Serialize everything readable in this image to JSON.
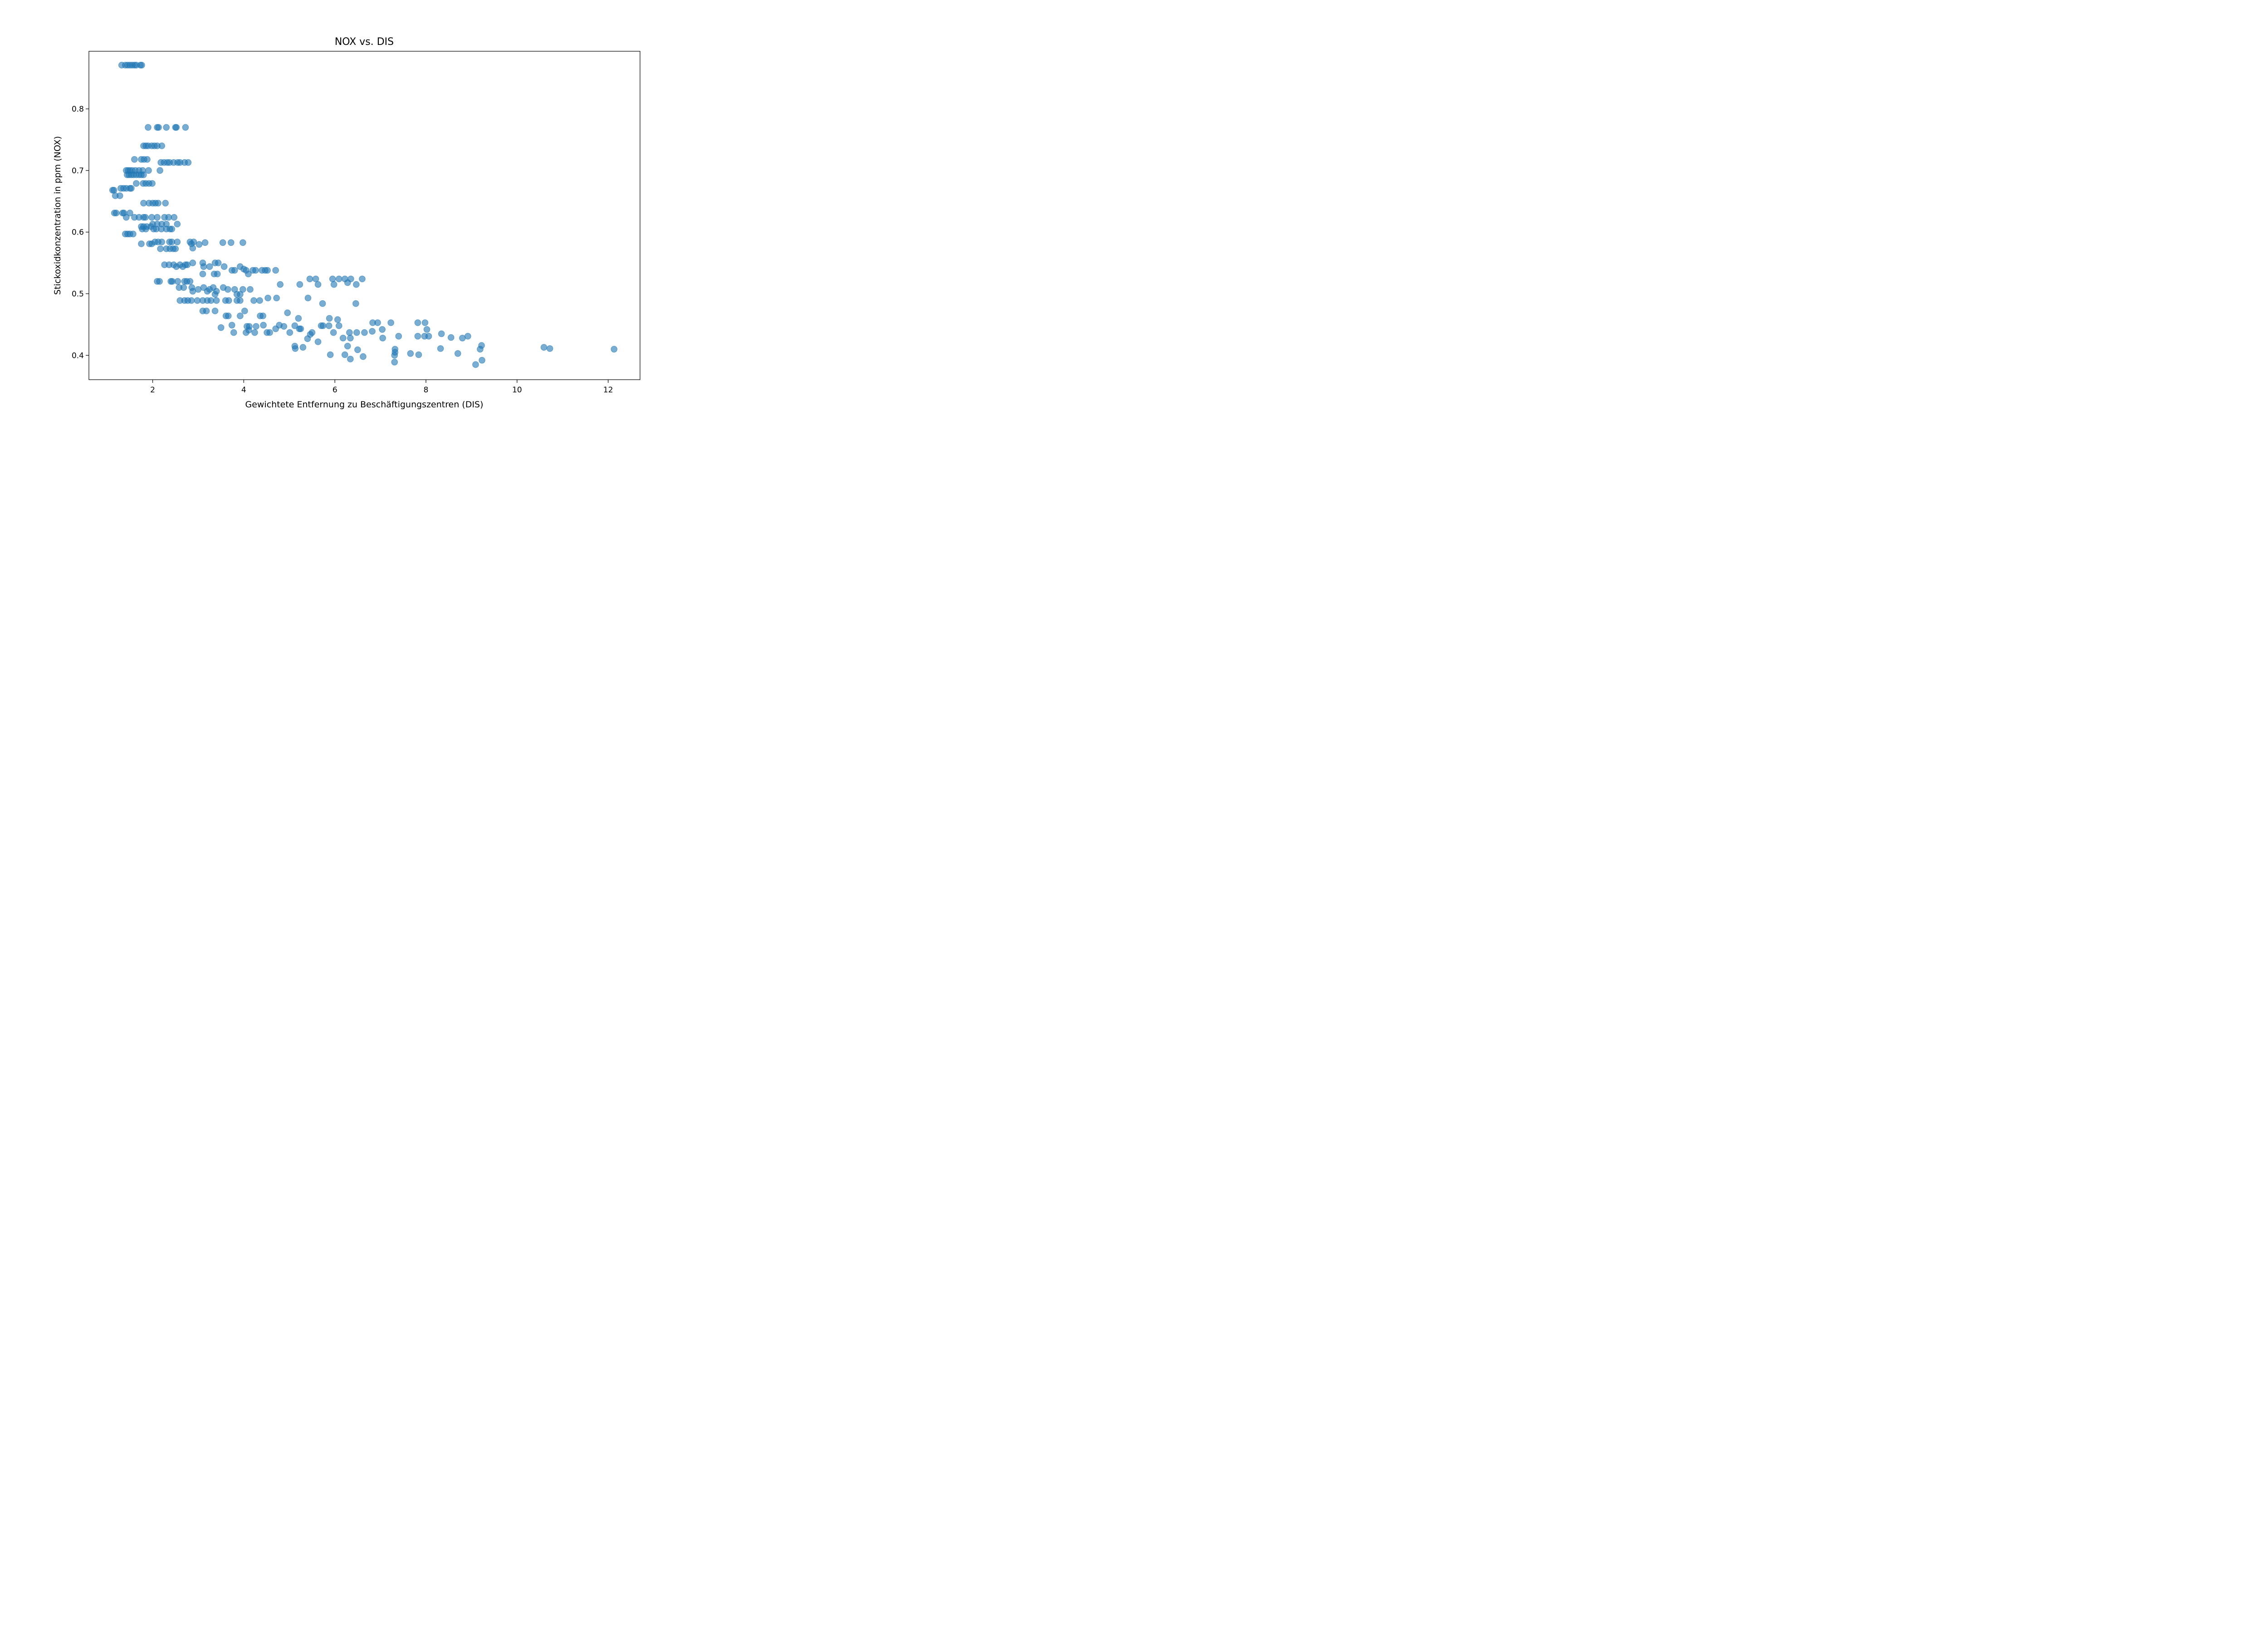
{
  "chart_data": {
    "type": "scatter",
    "title": "NOX vs. DIS",
    "xlabel": "Gewichtete Entfernung zu Beschäftigungszentren (DIS)",
    "ylabel": "Stickoxidkonzentration in ppm (NOX)",
    "xlim": [
      0.6,
      12.7
    ],
    "ylim": [
      0.3605,
      0.8935
    ],
    "xticks": [
      2,
      4,
      6,
      8,
      10,
      12
    ],
    "yticks": [
      0.4,
      0.5,
      0.6,
      0.7,
      0.8
    ],
    "grid": false,
    "marker_color": "#1f77b4",
    "marker_alpha": 0.6,
    "points": [
      [
        1.32,
        0.871
      ],
      [
        1.4,
        0.871
      ],
      [
        1.45,
        0.871
      ],
      [
        1.5,
        0.871
      ],
      [
        1.55,
        0.871
      ],
      [
        1.6,
        0.871
      ],
      [
        1.64,
        0.871
      ],
      [
        1.73,
        0.871
      ],
      [
        1.76,
        0.871
      ],
      [
        1.12,
        0.668
      ],
      [
        1.15,
        0.668
      ],
      [
        1.18,
        0.659
      ],
      [
        1.28,
        0.659
      ],
      [
        1.3,
        0.671
      ],
      [
        1.36,
        0.671
      ],
      [
        1.42,
        0.671
      ],
      [
        1.5,
        0.671
      ],
      [
        1.16,
        0.631
      ],
      [
        1.2,
        0.631
      ],
      [
        1.34,
        0.631
      ],
      [
        1.37,
        0.631
      ],
      [
        1.5,
        0.631
      ],
      [
        1.42,
        0.624
      ],
      [
        1.6,
        0.624
      ],
      [
        1.7,
        0.624
      ],
      [
        1.4,
        0.597
      ],
      [
        1.45,
        0.597
      ],
      [
        1.5,
        0.597
      ],
      [
        1.57,
        0.597
      ],
      [
        1.42,
        0.7
      ],
      [
        1.46,
        0.7
      ],
      [
        1.5,
        0.7
      ],
      [
        1.55,
        0.7
      ],
      [
        1.62,
        0.7
      ],
      [
        1.7,
        0.7
      ],
      [
        1.78,
        0.7
      ],
      [
        1.91,
        0.7
      ],
      [
        1.44,
        0.693
      ],
      [
        1.48,
        0.693
      ],
      [
        1.53,
        0.693
      ],
      [
        1.58,
        0.693
      ],
      [
        1.64,
        0.693
      ],
      [
        1.7,
        0.693
      ],
      [
        1.75,
        0.693
      ],
      [
        1.8,
        0.693
      ],
      [
        1.6,
        0.718
      ],
      [
        1.75,
        0.718
      ],
      [
        1.81,
        0.718
      ],
      [
        1.88,
        0.718
      ],
      [
        1.53,
        0.671
      ],
      [
        1.64,
        0.679
      ],
      [
        1.79,
        0.679
      ],
      [
        1.85,
        0.679
      ],
      [
        1.92,
        0.679
      ],
      [
        1.99,
        0.679
      ],
      [
        1.8,
        0.74
      ],
      [
        1.85,
        0.74
      ],
      [
        1.9,
        0.74
      ],
      [
        1.98,
        0.74
      ],
      [
        2.04,
        0.74
      ],
      [
        2.1,
        0.74
      ],
      [
        2.2,
        0.74
      ],
      [
        1.9,
        0.77
      ],
      [
        2.1,
        0.77
      ],
      [
        2.13,
        0.77
      ],
      [
        2.3,
        0.77
      ],
      [
        2.5,
        0.77
      ],
      [
        2.52,
        0.77
      ],
      [
        2.72,
        0.77
      ],
      [
        2.16,
        0.7
      ],
      [
        2.18,
        0.713
      ],
      [
        2.25,
        0.713
      ],
      [
        2.32,
        0.713
      ],
      [
        2.37,
        0.713
      ],
      [
        2.46,
        0.713
      ],
      [
        2.55,
        0.713
      ],
      [
        2.6,
        0.713
      ],
      [
        2.7,
        0.713
      ],
      [
        2.78,
        0.713
      ],
      [
        1.8,
        0.647
      ],
      [
        1.92,
        0.647
      ],
      [
        2.0,
        0.647
      ],
      [
        2.06,
        0.647
      ],
      [
        2.12,
        0.647
      ],
      [
        2.28,
        0.647
      ],
      [
        1.8,
        0.624
      ],
      [
        1.84,
        0.624
      ],
      [
        1.98,
        0.624
      ],
      [
        2.1,
        0.624
      ],
      [
        2.26,
        0.624
      ],
      [
        2.35,
        0.624
      ],
      [
        2.47,
        0.624
      ],
      [
        1.75,
        0.609
      ],
      [
        1.8,
        0.609
      ],
      [
        1.87,
        0.609
      ],
      [
        1.96,
        0.609
      ],
      [
        2.0,
        0.613
      ],
      [
        2.1,
        0.613
      ],
      [
        2.2,
        0.613
      ],
      [
        2.3,
        0.613
      ],
      [
        2.54,
        0.613
      ],
      [
        1.77,
        0.605
      ],
      [
        1.85,
        0.605
      ],
      [
        2.02,
        0.605
      ],
      [
        2.08,
        0.605
      ],
      [
        2.19,
        0.605
      ],
      [
        2.3,
        0.605
      ],
      [
        2.38,
        0.605
      ],
      [
        2.42,
        0.605
      ],
      [
        1.75,
        0.581
      ],
      [
        1.93,
        0.581
      ],
      [
        1.98,
        0.581
      ],
      [
        2.05,
        0.584
      ],
      [
        2.12,
        0.584
      ],
      [
        2.2,
        0.584
      ],
      [
        2.37,
        0.584
      ],
      [
        2.42,
        0.584
      ],
      [
        2.54,
        0.584
      ],
      [
        2.82,
        0.584
      ],
      [
        2.9,
        0.584
      ],
      [
        2.17,
        0.573
      ],
      [
        2.3,
        0.573
      ],
      [
        2.38,
        0.573
      ],
      [
        2.45,
        0.573
      ],
      [
        2.5,
        0.573
      ],
      [
        2.85,
        0.581
      ],
      [
        2.88,
        0.574
      ],
      [
        3.02,
        0.58
      ],
      [
        3.15,
        0.583
      ],
      [
        3.54,
        0.583
      ],
      [
        3.72,
        0.583
      ],
      [
        3.98,
        0.583
      ],
      [
        2.26,
        0.547
      ],
      [
        2.36,
        0.547
      ],
      [
        2.46,
        0.547
      ],
      [
        2.52,
        0.544
      ],
      [
        2.6,
        0.547
      ],
      [
        2.66,
        0.544
      ],
      [
        2.72,
        0.547
      ],
      [
        2.76,
        0.547
      ],
      [
        2.88,
        0.55
      ],
      [
        3.1,
        0.55
      ],
      [
        3.12,
        0.544
      ],
      [
        3.25,
        0.544
      ],
      [
        3.37,
        0.55
      ],
      [
        3.44,
        0.55
      ],
      [
        3.57,
        0.544
      ],
      [
        3.74,
        0.538
      ],
      [
        3.8,
        0.538
      ],
      [
        3.92,
        0.544
      ],
      [
        4.0,
        0.54
      ],
      [
        4.05,
        0.538
      ],
      [
        4.1,
        0.532
      ],
      [
        4.2,
        0.538
      ],
      [
        4.26,
        0.538
      ],
      [
        4.4,
        0.538
      ],
      [
        4.47,
        0.538
      ],
      [
        4.52,
        0.538
      ],
      [
        4.7,
        0.538
      ],
      [
        3.1,
        0.532
      ],
      [
        3.35,
        0.532
      ],
      [
        3.42,
        0.532
      ],
      [
        2.1,
        0.52
      ],
      [
        2.15,
        0.52
      ],
      [
        2.4,
        0.52
      ],
      [
        2.43,
        0.52
      ],
      [
        2.55,
        0.52
      ],
      [
        2.7,
        0.52
      ],
      [
        2.75,
        0.52
      ],
      [
        2.82,
        0.52
      ],
      [
        2.58,
        0.51
      ],
      [
        2.68,
        0.51
      ],
      [
        2.86,
        0.51
      ],
      [
        3.0,
        0.507
      ],
      [
        3.12,
        0.51
      ],
      [
        3.25,
        0.507
      ],
      [
        3.33,
        0.51
      ],
      [
        3.4,
        0.504
      ],
      [
        3.55,
        0.51
      ],
      [
        3.65,
        0.507
      ],
      [
        3.8,
        0.507
      ],
      [
        3.98,
        0.507
      ],
      [
        4.14,
        0.507
      ],
      [
        4.8,
        0.515
      ],
      [
        2.88,
        0.504
      ],
      [
        3.2,
        0.504
      ],
      [
        3.37,
        0.499
      ],
      [
        3.85,
        0.499
      ],
      [
        3.92,
        0.499
      ],
      [
        2.6,
        0.489
      ],
      [
        2.7,
        0.489
      ],
      [
        2.77,
        0.489
      ],
      [
        2.85,
        0.489
      ],
      [
        2.98,
        0.489
      ],
      [
        3.1,
        0.489
      ],
      [
        3.2,
        0.489
      ],
      [
        3.28,
        0.489
      ],
      [
        3.4,
        0.489
      ],
      [
        3.6,
        0.489
      ],
      [
        3.67,
        0.489
      ],
      [
        3.85,
        0.489
      ],
      [
        3.92,
        0.489
      ],
      [
        4.22,
        0.489
      ],
      [
        4.35,
        0.489
      ],
      [
        4.53,
        0.493
      ],
      [
        4.72,
        0.493
      ],
      [
        3.1,
        0.472
      ],
      [
        3.18,
        0.472
      ],
      [
        3.37,
        0.472
      ],
      [
        4.02,
        0.472
      ],
      [
        3.61,
        0.464
      ],
      [
        3.66,
        0.464
      ],
      [
        3.92,
        0.464
      ],
      [
        4.36,
        0.464
      ],
      [
        4.42,
        0.464
      ],
      [
        3.74,
        0.449
      ],
      [
        4.07,
        0.447
      ],
      [
        4.12,
        0.447
      ],
      [
        4.27,
        0.447
      ],
      [
        4.43,
        0.449
      ],
      [
        4.78,
        0.449
      ],
      [
        4.88,
        0.447
      ],
      [
        3.5,
        0.445
      ],
      [
        3.78,
        0.437
      ],
      [
        4.05,
        0.437
      ],
      [
        4.11,
        0.441
      ],
      [
        4.24,
        0.437
      ],
      [
        4.51,
        0.437
      ],
      [
        4.57,
        0.437
      ],
      [
        4.7,
        0.443
      ],
      [
        5.23,
        0.515
      ],
      [
        5.45,
        0.524
      ],
      [
        5.58,
        0.524
      ],
      [
        5.63,
        0.515
      ],
      [
        5.95,
        0.524
      ],
      [
        5.98,
        0.515
      ],
      [
        6.09,
        0.524
      ],
      [
        6.22,
        0.524
      ],
      [
        6.28,
        0.518
      ],
      [
        6.35,
        0.524
      ],
      [
        6.47,
        0.515
      ],
      [
        6.6,
        0.524
      ],
      [
        4.96,
        0.469
      ],
      [
        5.2,
        0.46
      ],
      [
        5.41,
        0.493
      ],
      [
        5.73,
        0.484
      ],
      [
        6.46,
        0.484
      ],
      [
        5.88,
        0.46
      ],
      [
        6.06,
        0.458
      ],
      [
        5.01,
        0.437
      ],
      [
        5.12,
        0.448
      ],
      [
        5.22,
        0.443
      ],
      [
        5.25,
        0.443
      ],
      [
        5.4,
        0.427
      ],
      [
        5.46,
        0.434
      ],
      [
        5.5,
        0.437
      ],
      [
        5.7,
        0.448
      ],
      [
        5.74,
        0.448
      ],
      [
        5.87,
        0.448
      ],
      [
        5.97,
        0.437
      ],
      [
        6.09,
        0.448
      ],
      [
        5.12,
        0.415
      ],
      [
        5.13,
        0.411
      ],
      [
        5.3,
        0.413
      ],
      [
        5.63,
        0.422
      ],
      [
        5.9,
        0.401
      ],
      [
        6.18,
        0.428
      ],
      [
        6.22,
        0.401
      ],
      [
        6.28,
        0.415
      ],
      [
        6.32,
        0.437
      ],
      [
        6.34,
        0.428
      ],
      [
        6.34,
        0.394
      ],
      [
        6.48,
        0.437
      ],
      [
        6.5,
        0.409
      ],
      [
        6.62,
        0.398
      ],
      [
        6.65,
        0.437
      ],
      [
        6.82,
        0.439
      ],
      [
        6.83,
        0.453
      ],
      [
        6.94,
        0.453
      ],
      [
        7.04,
        0.442
      ],
      [
        7.05,
        0.428
      ],
      [
        7.23,
        0.453
      ],
      [
        7.32,
        0.41
      ],
      [
        7.32,
        0.405
      ],
      [
        7.31,
        0.4
      ],
      [
        7.31,
        0.389
      ],
      [
        7.4,
        0.431
      ],
      [
        7.66,
        0.403
      ],
      [
        7.82,
        0.453
      ],
      [
        7.82,
        0.431
      ],
      [
        7.84,
        0.401
      ],
      [
        7.97,
        0.431
      ],
      [
        7.98,
        0.453
      ],
      [
        8.02,
        0.442
      ],
      [
        8.06,
        0.431
      ],
      [
        8.34,
        0.435
      ],
      [
        8.32,
        0.411
      ],
      [
        8.55,
        0.429
      ],
      [
        8.7,
        0.403
      ],
      [
        8.8,
        0.428
      ],
      [
        8.92,
        0.431
      ],
      [
        9.09,
        0.385
      ],
      [
        9.19,
        0.41
      ],
      [
        9.22,
        0.416
      ],
      [
        9.23,
        0.392
      ],
      [
        10.59,
        0.413
      ],
      [
        10.72,
        0.411
      ],
      [
        12.13,
        0.41
      ]
    ]
  }
}
